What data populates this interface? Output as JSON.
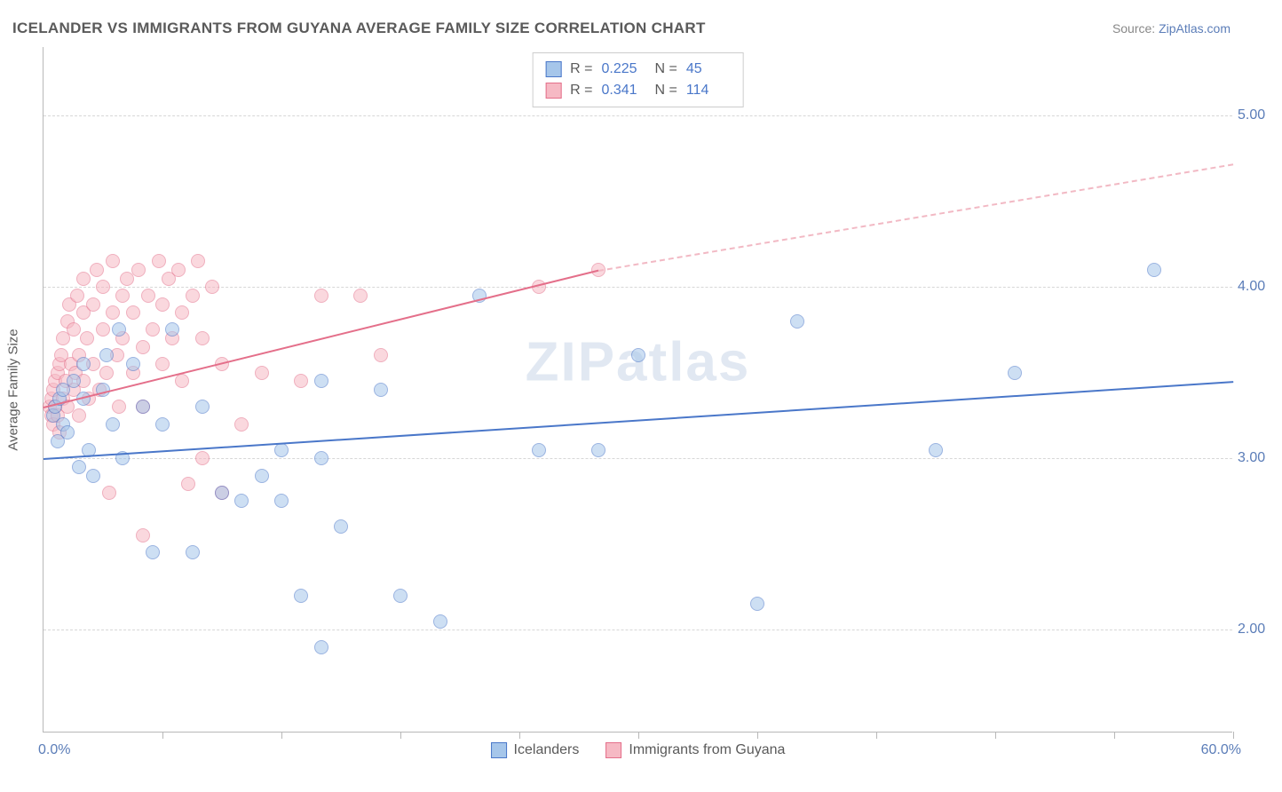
{
  "title": "ICELANDER VS IMMIGRANTS FROM GUYANA AVERAGE FAMILY SIZE CORRELATION CHART",
  "source_prefix": "Source: ",
  "source_name": "ZipAtlas.com",
  "watermark": "ZIPatlas",
  "y_axis_title": "Average Family Size",
  "chart": {
    "type": "scatter",
    "xlim": [
      0,
      60
    ],
    "ylim": [
      1.4,
      5.4
    ],
    "x_min_label": "0.0%",
    "x_max_label": "60.0%",
    "xticks": [
      6,
      12,
      18,
      24,
      30,
      36,
      42,
      48,
      54,
      60
    ],
    "yticks": [
      2.0,
      3.0,
      4.0,
      5.0
    ],
    "ytick_labels": [
      "2.00",
      "3.00",
      "4.00",
      "5.00"
    ],
    "grid_color": "#d7d7d7",
    "axis_color": "#b8b8b8",
    "background_color": "#ffffff",
    "tick_label_color": "#5b7db8",
    "marker_radius": 8,
    "marker_opacity": 0.55,
    "series": [
      {
        "name": "Icelanders",
        "fill_color": "#a6c6ea",
        "stroke_color": "#4a77c9",
        "R": "0.225",
        "N": "45",
        "trend": {
          "x1": 0,
          "y1": 3.0,
          "x2": 60,
          "y2": 3.45,
          "dash": false,
          "color": "#4a77c9"
        },
        "points": [
          [
            0.5,
            3.25
          ],
          [
            0.6,
            3.3
          ],
          [
            0.7,
            3.1
          ],
          [
            0.8,
            3.35
          ],
          [
            1.0,
            3.2
          ],
          [
            1.0,
            3.4
          ],
          [
            1.2,
            3.15
          ],
          [
            1.5,
            3.45
          ],
          [
            1.8,
            2.95
          ],
          [
            2.0,
            3.35
          ],
          [
            2.0,
            3.55
          ],
          [
            2.3,
            3.05
          ],
          [
            2.5,
            2.9
          ],
          [
            3.0,
            3.4
          ],
          [
            3.2,
            3.6
          ],
          [
            3.5,
            3.2
          ],
          [
            3.8,
            3.75
          ],
          [
            4.0,
            3.0
          ],
          [
            4.5,
            3.55
          ],
          [
            5.0,
            3.3
          ],
          [
            5.5,
            2.45
          ],
          [
            6.0,
            3.2
          ],
          [
            6.5,
            3.75
          ],
          [
            7.5,
            2.45
          ],
          [
            8.0,
            3.3
          ],
          [
            9.0,
            2.8
          ],
          [
            10.0,
            2.75
          ],
          [
            11.0,
            2.9
          ],
          [
            12.0,
            2.75
          ],
          [
            12.0,
            3.05
          ],
          [
            14.0,
            3.0
          ],
          [
            13.0,
            2.2
          ],
          [
            14.0,
            3.45
          ],
          [
            14.0,
            1.9
          ],
          [
            15.0,
            2.6
          ],
          [
            17.0,
            3.4
          ],
          [
            18.0,
            2.2
          ],
          [
            20.0,
            2.05
          ],
          [
            22.0,
            3.95
          ],
          [
            25.0,
            3.05
          ],
          [
            28.0,
            3.05
          ],
          [
            30.0,
            3.6
          ],
          [
            38.0,
            3.8
          ],
          [
            45.0,
            3.05
          ],
          [
            49.0,
            3.5
          ],
          [
            56.0,
            4.1
          ],
          [
            36.0,
            2.15
          ]
        ]
      },
      {
        "name": "Immigrants from Guyana",
        "fill_color": "#f6b9c4",
        "stroke_color": "#e46f8a",
        "R": "0.341",
        "N": "114",
        "trend_solid": {
          "x1": 0,
          "y1": 3.3,
          "x2": 28,
          "y2": 4.1,
          "dash": false,
          "color": "#e46f8a"
        },
        "trend_dash": {
          "x1": 28,
          "y1": 4.1,
          "x2": 60,
          "y2": 4.72,
          "dash": true,
          "color": "#f2b9c4"
        },
        "points": [
          [
            0.3,
            3.3
          ],
          [
            0.4,
            3.35
          ],
          [
            0.4,
            3.25
          ],
          [
            0.5,
            3.4
          ],
          [
            0.5,
            3.2
          ],
          [
            0.6,
            3.45
          ],
          [
            0.6,
            3.3
          ],
          [
            0.7,
            3.5
          ],
          [
            0.7,
            3.25
          ],
          [
            0.8,
            3.55
          ],
          [
            0.8,
            3.15
          ],
          [
            0.9,
            3.6
          ],
          [
            1.0,
            3.35
          ],
          [
            1.0,
            3.7
          ],
          [
            1.1,
            3.45
          ],
          [
            1.2,
            3.8
          ],
          [
            1.2,
            3.3
          ],
          [
            1.3,
            3.9
          ],
          [
            1.4,
            3.55
          ],
          [
            1.5,
            3.4
          ],
          [
            1.5,
            3.75
          ],
          [
            1.6,
            3.5
          ],
          [
            1.7,
            3.95
          ],
          [
            1.8,
            3.6
          ],
          [
            1.8,
            3.25
          ],
          [
            2.0,
            3.85
          ],
          [
            2.0,
            3.45
          ],
          [
            2.0,
            4.05
          ],
          [
            2.2,
            3.7
          ],
          [
            2.3,
            3.35
          ],
          [
            2.5,
            3.9
          ],
          [
            2.5,
            3.55
          ],
          [
            2.7,
            4.1
          ],
          [
            2.8,
            3.4
          ],
          [
            3.0,
            3.75
          ],
          [
            3.0,
            4.0
          ],
          [
            3.2,
            3.5
          ],
          [
            3.3,
            2.8
          ],
          [
            3.5,
            3.85
          ],
          [
            3.5,
            4.15
          ],
          [
            3.7,
            3.6
          ],
          [
            3.8,
            3.3
          ],
          [
            4.0,
            3.95
          ],
          [
            4.0,
            3.7
          ],
          [
            4.2,
            4.05
          ],
          [
            4.5,
            3.5
          ],
          [
            4.5,
            3.85
          ],
          [
            4.8,
            4.1
          ],
          [
            5.0,
            3.65
          ],
          [
            5.0,
            3.3
          ],
          [
            5.0,
            2.55
          ],
          [
            5.3,
            3.95
          ],
          [
            5.5,
            3.75
          ],
          [
            5.8,
            4.15
          ],
          [
            6.0,
            3.55
          ],
          [
            6.0,
            3.9
          ],
          [
            6.3,
            4.05
          ],
          [
            6.5,
            3.7
          ],
          [
            6.8,
            4.1
          ],
          [
            7.0,
            3.85
          ],
          [
            7.0,
            3.45
          ],
          [
            7.3,
            2.85
          ],
          [
            7.5,
            3.95
          ],
          [
            7.8,
            4.15
          ],
          [
            8.0,
            3.7
          ],
          [
            8.0,
            3.0
          ],
          [
            8.5,
            4.0
          ],
          [
            9.0,
            3.55
          ],
          [
            9.0,
            2.8
          ],
          [
            10.0,
            3.2
          ],
          [
            11.0,
            3.5
          ],
          [
            13.0,
            3.45
          ],
          [
            14.0,
            3.95
          ],
          [
            16.0,
            3.95
          ],
          [
            17.0,
            3.6
          ],
          [
            25.0,
            4.0
          ],
          [
            28.0,
            4.1
          ]
        ]
      }
    ]
  },
  "stats_labels": {
    "R": "R =",
    "N": "N ="
  },
  "legend": {
    "series1": "Icelanders",
    "series2": "Immigrants from Guyana"
  }
}
